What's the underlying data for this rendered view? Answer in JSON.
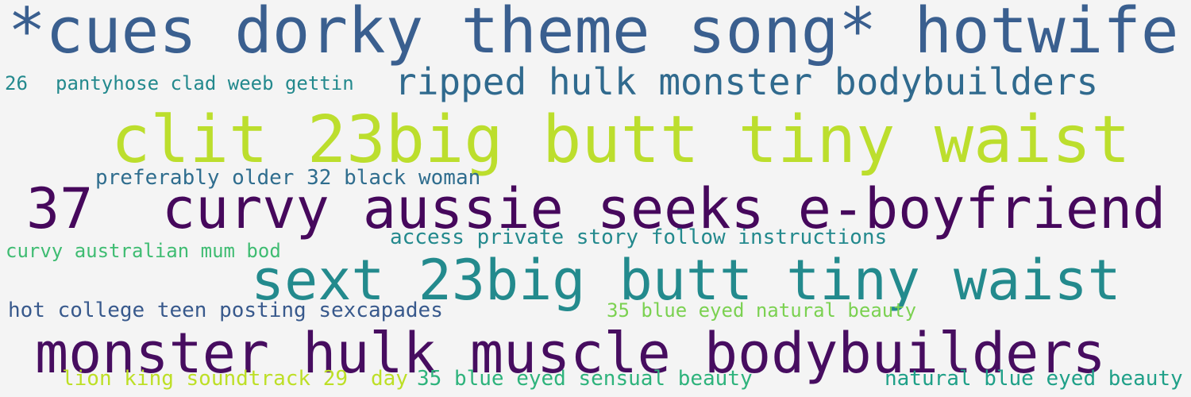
{
  "words": [
    {
      "text": "*cues dorky theme song* hotwife",
      "color": "#3a5f8f"
    },
    {
      "text": "26",
      "color": "#23898d"
    },
    {
      "text": "pantyhose clad weeb gettin",
      "color": "#23898d"
    },
    {
      "text": "ripped hulk monster bodybuilders",
      "color": "#306a8e"
    },
    {
      "text": "clit 23big butt tiny waist",
      "color": "#bcde2d"
    },
    {
      "text": "preferably older 32 black woman",
      "color": "#2f6d8e"
    },
    {
      "text": "37",
      "color": "#46085c"
    },
    {
      "text": "curvy aussie seeks e-boyfriend",
      "color": "#46085c"
    },
    {
      "text": "access private story follow instructions",
      "color": "#23898d"
    },
    {
      "text": "curvy australian mum bod",
      "color": "#3fbc72"
    },
    {
      "text": "sext 23big butt tiny waist",
      "color": "#238a8d"
    },
    {
      "text": "hot college teen posting sexcapades",
      "color": "#38598c"
    },
    {
      "text": "35 blue eyed natural beauty",
      "color": "#7bd151"
    },
    {
      "text": "monster hulk muscle bodybuilders",
      "color": "#470d60"
    },
    {
      "text": "lion king soundtrack 29",
      "color": "#bddf26"
    },
    {
      "text": "day",
      "color": "#bddf26"
    },
    {
      "text": "35 blue eyed sensual beauty",
      "color": "#2eb37c"
    },
    {
      "text": "natural blue eyed beauty",
      "color": "#1fa088"
    }
  ]
}
